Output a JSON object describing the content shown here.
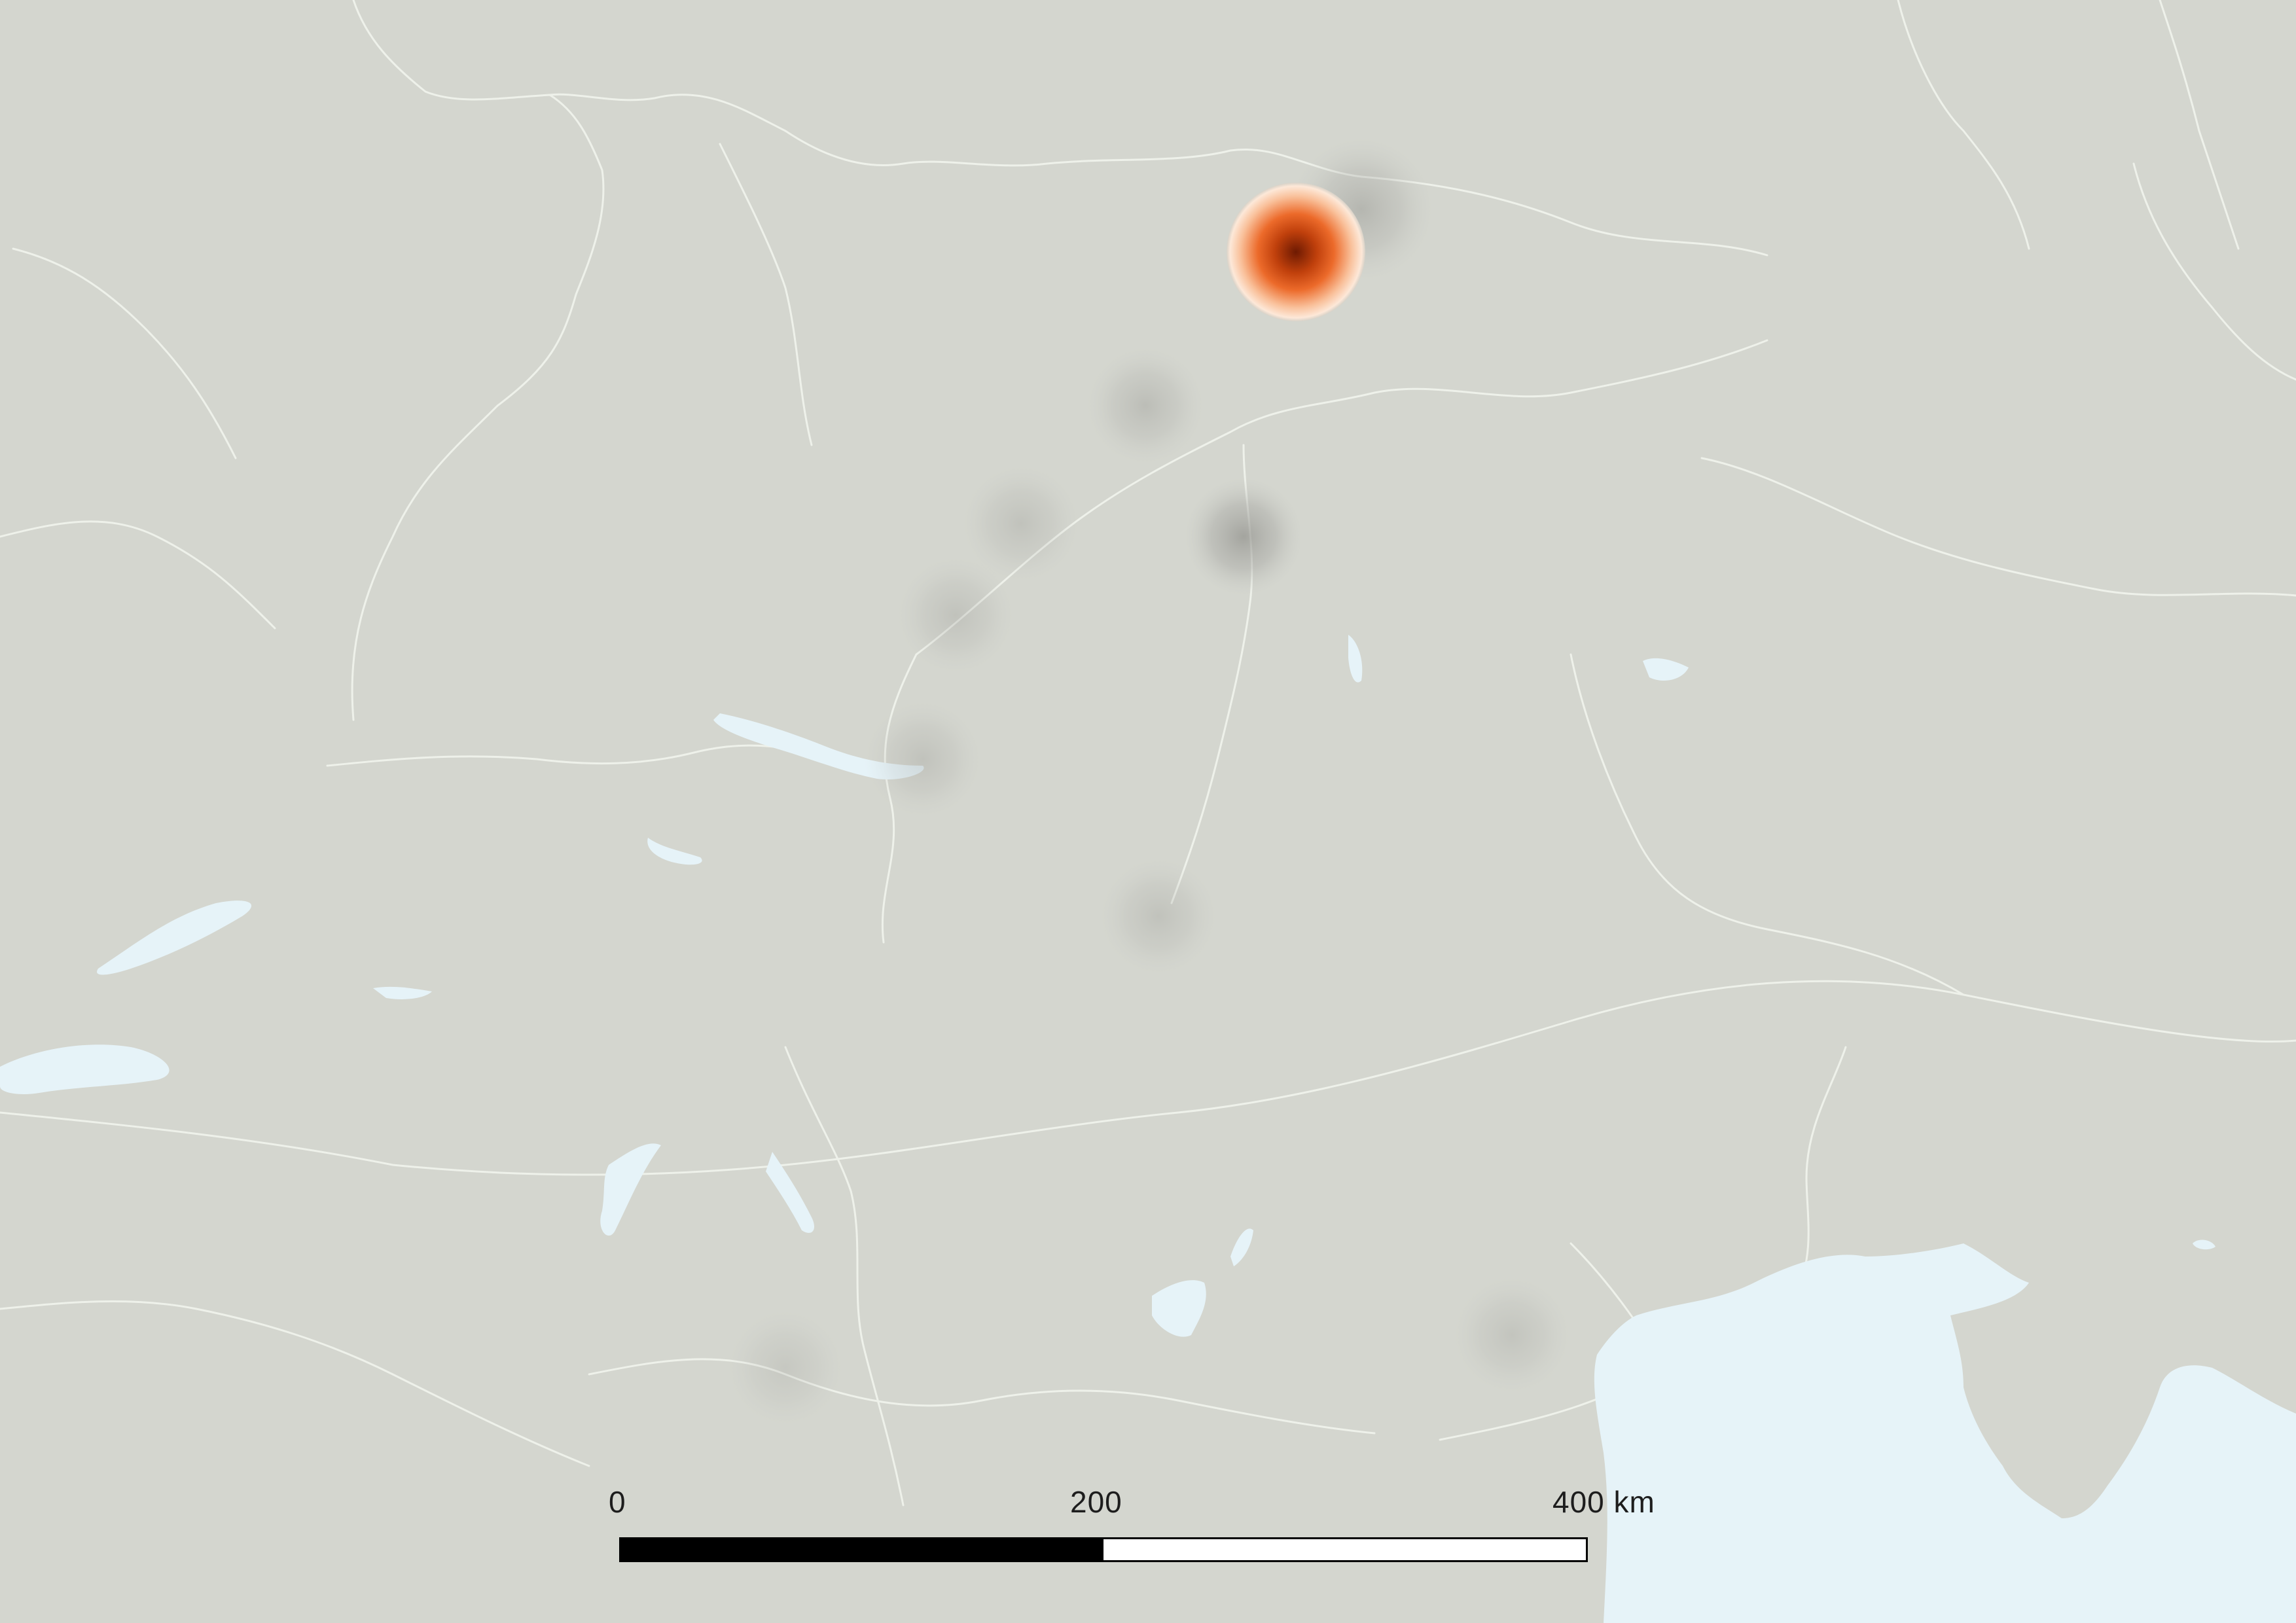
{
  "map": {
    "colors": {
      "land": "#d4d6cf",
      "water": "#e6f3f8",
      "rivers": "#eef1ea",
      "hotspot_core": "#8a2a06",
      "hotspot_mid": "#e8581e",
      "hotspot_edge": "#fce3cf",
      "density_shadow": "#8f8f8a"
    },
    "hotspots": [
      {
        "name": "primary-hotspot",
        "intensity": 1.0
      },
      {
        "name": "faint-density",
        "intensity": 0.35
      },
      {
        "name": "faint-density",
        "intensity": 0.18
      },
      {
        "name": "faint-density",
        "intensity": 0.15
      },
      {
        "name": "faint-density",
        "intensity": 0.14
      },
      {
        "name": "faint-density",
        "intensity": 0.14
      },
      {
        "name": "faint-density",
        "intensity": 0.15
      },
      {
        "name": "faint-density",
        "intensity": 0.12
      },
      {
        "name": "faint-density",
        "intensity": 0.1
      }
    ]
  },
  "scale_bar": {
    "labels": [
      "0",
      "200",
      "400 km"
    ],
    "max_km": 400,
    "divisions": 2,
    "filled_color": "#000000",
    "empty_color": "#ffffff"
  }
}
